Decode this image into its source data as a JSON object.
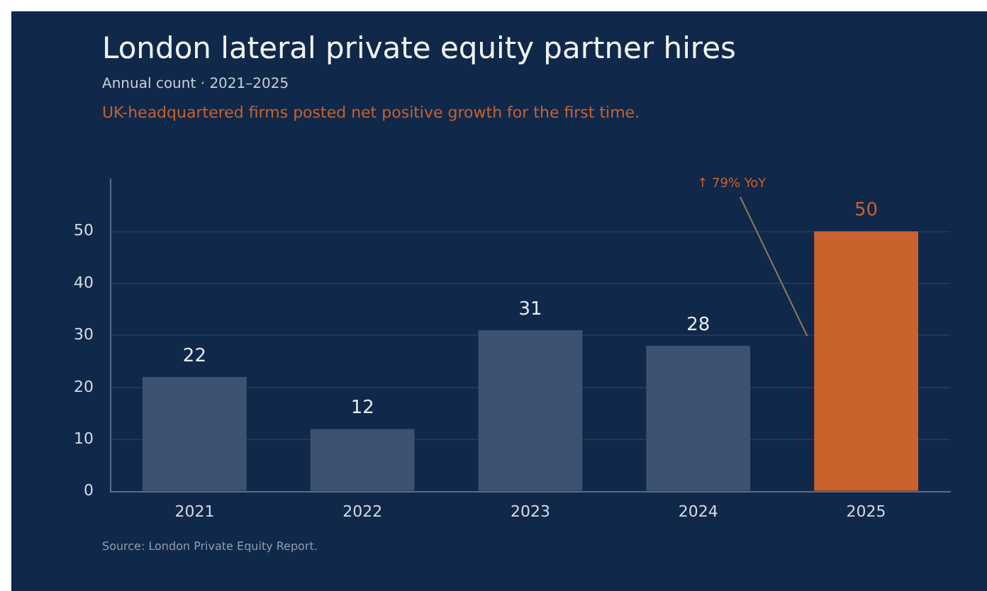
{
  "chart_data": {
    "type": "bar",
    "title": "London lateral private equity partner hires",
    "subtitle": "Annual count · 2021–2025",
    "categories": [
      "2021",
      "2022",
      "2023",
      "2024",
      "2025"
    ],
    "values": [
      22,
      12,
      31,
      28,
      50
    ],
    "colors": [
      "#3d5170",
      "#3d5170",
      "#3d5170",
      "#3d5170",
      "#c9622d"
    ],
    "ylim": [
      0,
      60
    ],
    "yticks": [
      0,
      10,
      20,
      30,
      40,
      50
    ],
    "grid": "y",
    "data_labels": true,
    "annotations": [
      "UK-headquartered firms posted net positive growth for the first time.",
      "↑ 79% YoY",
      "Source: London Private Equity Report."
    ]
  }
}
